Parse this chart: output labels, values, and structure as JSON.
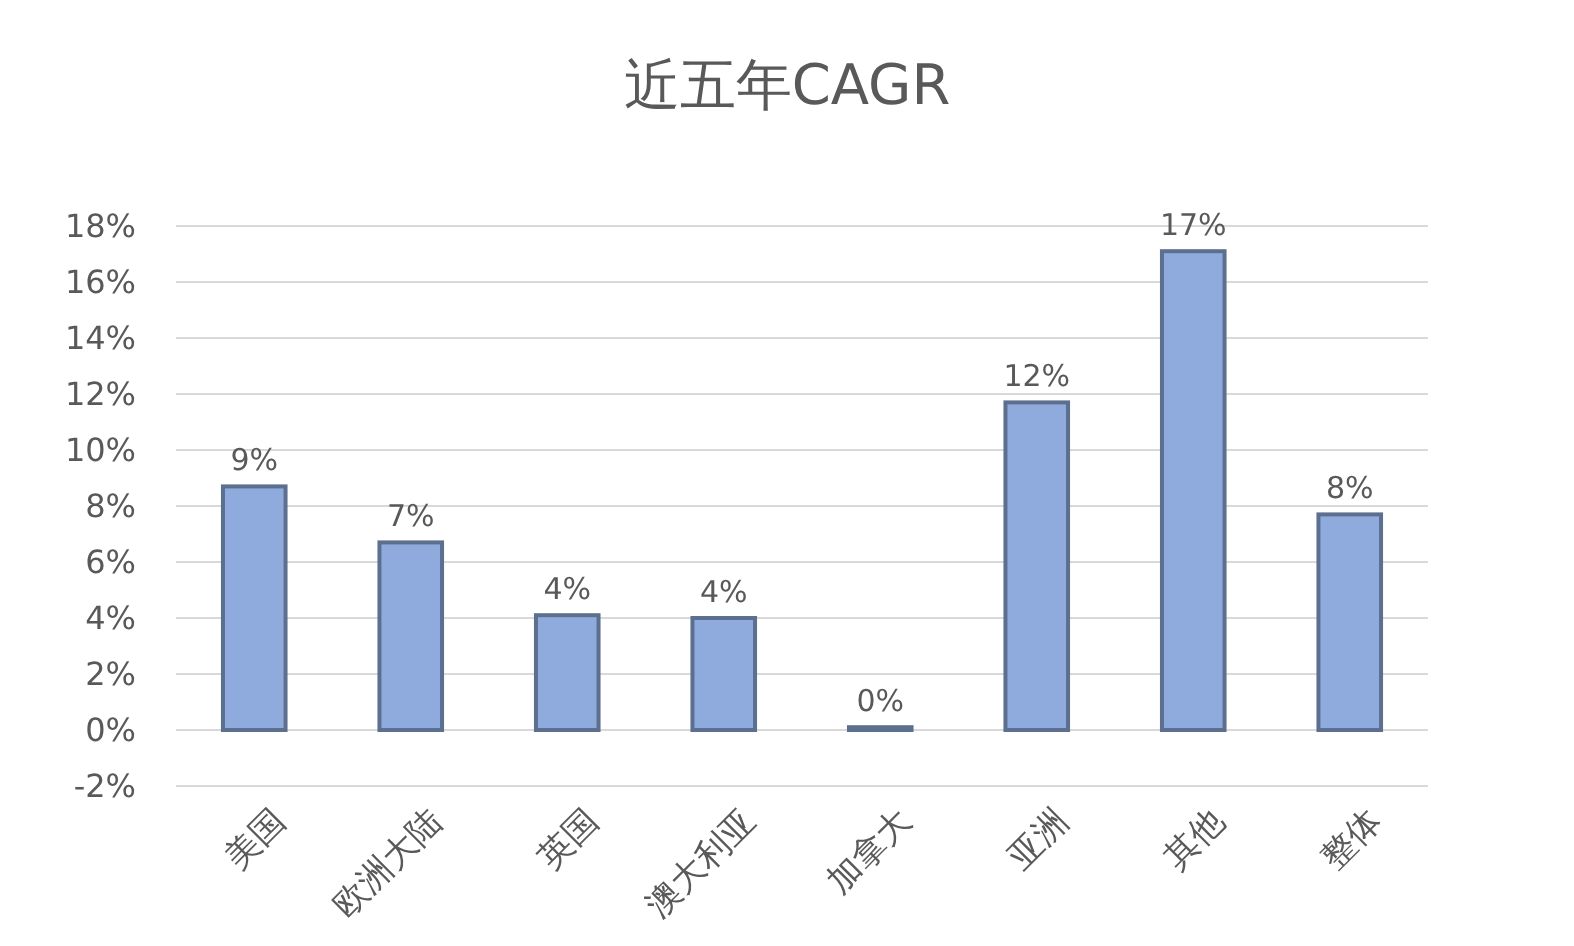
{
  "chart_data": {
    "type": "bar",
    "title": "近五年CAGR",
    "categories": [
      "美国",
      "欧洲大陆",
      "英国",
      "澳大利亚",
      "加拿大",
      "亚洲",
      "其他",
      "整体"
    ],
    "values": [
      8.7,
      6.7,
      4.1,
      4.0,
      0.1,
      11.7,
      17.1,
      7.7
    ],
    "value_labels": [
      "9%",
      "7%",
      "4%",
      "4%",
      "0%",
      "12%",
      "17%",
      "8%"
    ],
    "color": "#8faadc",
    "ylim": [
      -2,
      18
    ],
    "yticks": [
      {
        "value": -2,
        "label": "-2%"
      },
      {
        "value": 0,
        "label": "0%"
      },
      {
        "value": 2,
        "label": "2%"
      },
      {
        "value": 4,
        "label": "4%"
      },
      {
        "value": 6,
        "label": "6%"
      },
      {
        "value": 8,
        "label": "8%"
      },
      {
        "value": 10,
        "label": "10%"
      },
      {
        "value": 12,
        "label": "12%"
      },
      {
        "value": 14,
        "label": "14%"
      },
      {
        "value": 16,
        "label": "16%"
      },
      {
        "value": 18,
        "label": "18%"
      }
    ],
    "grid": true
  }
}
